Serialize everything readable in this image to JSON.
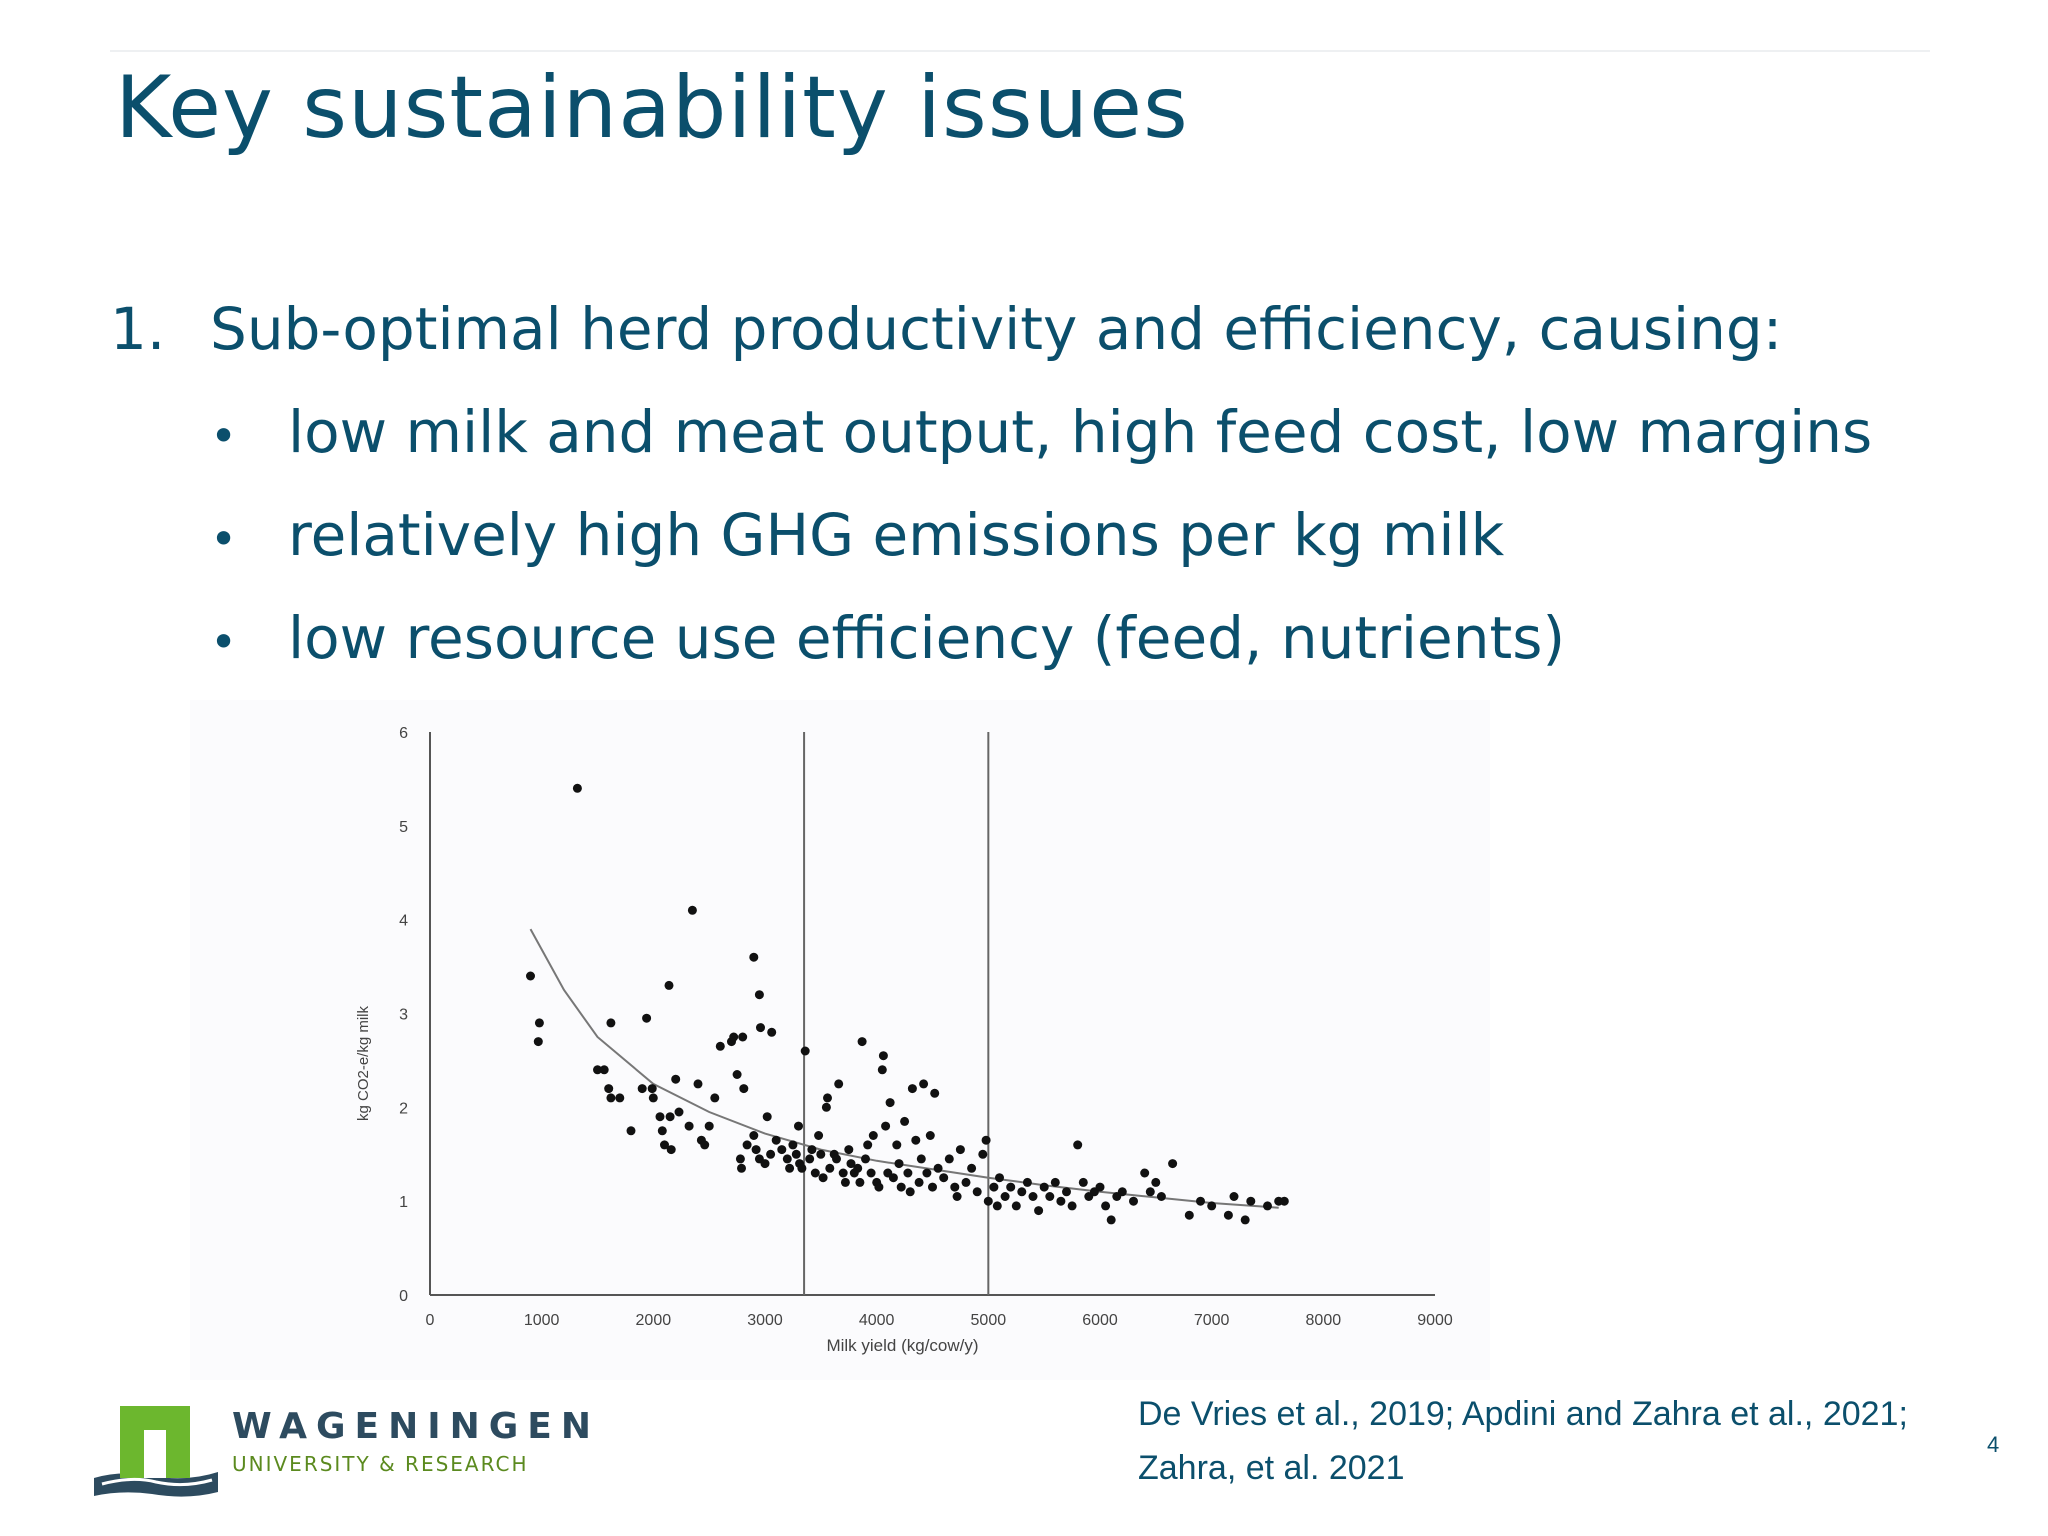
{
  "slide": {
    "title": "Key sustainability issues",
    "page_number": "4",
    "list": {
      "item_number": "1.",
      "item_text": "Sub-optimal herd productivity and efficiency, causing:",
      "sub_items": [
        "low milk and meat output, high feed cost, low margins",
        "relatively high GHG emissions per kg milk",
        "low resource use efficiency (feed, nutrients)"
      ],
      "bullet_char": "•"
    },
    "citation": {
      "line1": "De Vries et al., 2019; Apdini and Zahra et al., 2021;",
      "line2": "Zahra, et al. 2021"
    },
    "logo": {
      "name": "WAGENINGEN",
      "subtitle": "UNIVERSITY & RESEARCH"
    },
    "colors": {
      "title": "#0b4f6c",
      "logo_green": "#6cb72e",
      "logo_navy": "#2d4b5f"
    }
  },
  "chart_data": {
    "type": "scatter",
    "xlabel": "Milk yield (kg/cow/y)",
    "ylabel": "kg CO2-e/kg milk",
    "xlim": [
      0,
      9000
    ],
    "ylim": [
      0,
      6
    ],
    "x_ticks": [
      "0",
      "1000",
      "2000",
      "3000",
      "4000",
      "5000",
      "6000",
      "7000",
      "8000",
      "9000"
    ],
    "y_ticks": [
      "0",
      "1",
      "2",
      "3",
      "4",
      "5",
      "6"
    ],
    "vertical_lines_x": [
      3350,
      5000
    ],
    "trend": {
      "type": "power-curve",
      "points": [
        [
          900,
          3.9
        ],
        [
          1200,
          3.25
        ],
        [
          1500,
          2.75
        ],
        [
          2000,
          2.25
        ],
        [
          2500,
          1.95
        ],
        [
          3000,
          1.72
        ],
        [
          3500,
          1.55
        ],
        [
          4000,
          1.43
        ],
        [
          4500,
          1.34
        ],
        [
          5000,
          1.25
        ],
        [
          5500,
          1.17
        ],
        [
          6000,
          1.1
        ],
        [
          6500,
          1.04
        ],
        [
          7000,
          0.98
        ],
        [
          7600,
          0.93
        ]
      ]
    },
    "points": [
      [
        900,
        3.4
      ],
      [
        980,
        2.9
      ],
      [
        970,
        2.7
      ],
      [
        1320,
        5.4
      ],
      [
        2350,
        4.1
      ],
      [
        2140,
        3.3
      ],
      [
        1940,
        2.95
      ],
      [
        1620,
        2.9
      ],
      [
        1500,
        2.4
      ],
      [
        1560,
        2.4
      ],
      [
        1600,
        2.2
      ],
      [
        1620,
        2.1
      ],
      [
        1700,
        2.1
      ],
      [
        1800,
        1.75
      ],
      [
        1900,
        2.2
      ],
      [
        1990,
        2.2
      ],
      [
        2000,
        2.1
      ],
      [
        2060,
        1.9
      ],
      [
        2080,
        1.75
      ],
      [
        2100,
        1.6
      ],
      [
        2150,
        1.9
      ],
      [
        2160,
        1.55
      ],
      [
        2200,
        2.3
      ],
      [
        2230,
        1.95
      ],
      [
        2320,
        1.8
      ],
      [
        2400,
        2.25
      ],
      [
        2430,
        1.65
      ],
      [
        2460,
        1.6
      ],
      [
        2500,
        1.8
      ],
      [
        2550,
        2.1
      ],
      [
        2600,
        2.65
      ],
      [
        2700,
        2.7
      ],
      [
        2720,
        2.75
      ],
      [
        2800,
        2.75
      ],
      [
        2750,
        2.35
      ],
      [
        2810,
        2.2
      ],
      [
        2900,
        3.6
      ],
      [
        2950,
        3.2
      ],
      [
        2960,
        2.85
      ],
      [
        3060,
        2.8
      ],
      [
        3020,
        1.9
      ],
      [
        2780,
        1.45
      ],
      [
        2790,
        1.35
      ],
      [
        2840,
        1.6
      ],
      [
        2900,
        1.7
      ],
      [
        2920,
        1.55
      ],
      [
        2950,
        1.45
      ],
      [
        3000,
        1.4
      ],
      [
        3050,
        1.5
      ],
      [
        3100,
        1.65
      ],
      [
        3150,
        1.55
      ],
      [
        3200,
        1.45
      ],
      [
        3220,
        1.35
      ],
      [
        3250,
        1.6
      ],
      [
        3280,
        1.5
      ],
      [
        3300,
        1.8
      ],
      [
        3310,
        1.4
      ],
      [
        3330,
        1.35
      ],
      [
        3360,
        2.6
      ],
      [
        3400,
        1.45
      ],
      [
        3420,
        1.55
      ],
      [
        3450,
        1.3
      ],
      [
        3480,
        1.7
      ],
      [
        3500,
        1.5
      ],
      [
        3520,
        1.25
      ],
      [
        3550,
        2.0
      ],
      [
        3560,
        2.1
      ],
      [
        3580,
        1.35
      ],
      [
        3620,
        1.5
      ],
      [
        3640,
        1.45
      ],
      [
        3660,
        2.25
      ],
      [
        3700,
        1.3
      ],
      [
        3720,
        1.2
      ],
      [
        3750,
        1.55
      ],
      [
        3770,
        1.4
      ],
      [
        3800,
        1.3
      ],
      [
        3830,
        1.35
      ],
      [
        3850,
        1.2
      ],
      [
        3870,
        2.7
      ],
      [
        3900,
        1.45
      ],
      [
        3920,
        1.6
      ],
      [
        3950,
        1.3
      ],
      [
        3970,
        1.7
      ],
      [
        4000,
        1.2
      ],
      [
        4020,
        1.15
      ],
      [
        4050,
        2.4
      ],
      [
        4060,
        2.55
      ],
      [
        4080,
        1.8
      ],
      [
        4100,
        1.3
      ],
      [
        4120,
        2.05
      ],
      [
        4150,
        1.25
      ],
      [
        4180,
        1.6
      ],
      [
        4200,
        1.4
      ],
      [
        4220,
        1.15
      ],
      [
        4250,
        1.85
      ],
      [
        4280,
        1.3
      ],
      [
        4300,
        1.1
      ],
      [
        4320,
        2.2
      ],
      [
        4350,
        1.65
      ],
      [
        4380,
        1.2
      ],
      [
        4400,
        1.45
      ],
      [
        4420,
        2.25
      ],
      [
        4450,
        1.3
      ],
      [
        4480,
        1.7
      ],
      [
        4500,
        1.15
      ],
      [
        4520,
        2.15
      ],
      [
        4550,
        1.35
      ],
      [
        4600,
        1.25
      ],
      [
        4650,
        1.45
      ],
      [
        4700,
        1.15
      ],
      [
        4720,
        1.05
      ],
      [
        4750,
        1.55
      ],
      [
        4800,
        1.2
      ],
      [
        4850,
        1.35
      ],
      [
        4900,
        1.1
      ],
      [
        4950,
        1.5
      ],
      [
        4980,
        1.65
      ],
      [
        5000,
        1.0
      ],
      [
        5050,
        1.15
      ],
      [
        5080,
        0.95
      ],
      [
        5100,
        1.25
      ],
      [
        5150,
        1.05
      ],
      [
        5200,
        1.15
      ],
      [
        5250,
        0.95
      ],
      [
        5300,
        1.1
      ],
      [
        5350,
        1.2
      ],
      [
        5400,
        1.05
      ],
      [
        5450,
        0.9
      ],
      [
        5500,
        1.15
      ],
      [
        5550,
        1.05
      ],
      [
        5600,
        1.2
      ],
      [
        5650,
        1.0
      ],
      [
        5700,
        1.1
      ],
      [
        5750,
        0.95
      ],
      [
        5800,
        1.6
      ],
      [
        5850,
        1.2
      ],
      [
        5900,
        1.05
      ],
      [
        5950,
        1.1
      ],
      [
        6000,
        1.15
      ],
      [
        6050,
        0.95
      ],
      [
        6100,
        0.8
      ],
      [
        6150,
        1.05
      ],
      [
        6200,
        1.1
      ],
      [
        6300,
        1.0
      ],
      [
        6400,
        1.3
      ],
      [
        6450,
        1.1
      ],
      [
        6500,
        1.2
      ],
      [
        6550,
        1.05
      ],
      [
        6650,
        1.4
      ],
      [
        6800,
        0.85
      ],
      [
        6900,
        1.0
      ],
      [
        7000,
        0.95
      ],
      [
        7150,
        0.85
      ],
      [
        7200,
        1.05
      ],
      [
        7300,
        0.8
      ],
      [
        7350,
        1.0
      ],
      [
        7500,
        0.95
      ],
      [
        7600,
        1.0
      ],
      [
        7650,
        1.0
      ]
    ]
  }
}
